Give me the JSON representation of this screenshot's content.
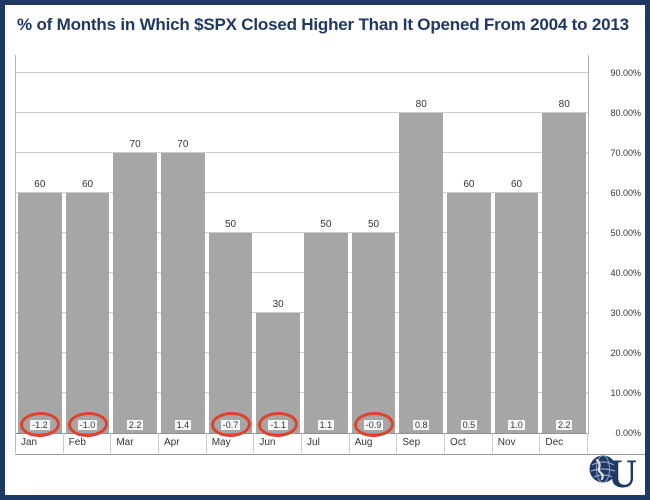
{
  "title": "% of  Months in Which $SPX Closed Higher Than It Opened From 2004 to 2013",
  "logo": {
    "letter": "U"
  },
  "chart_data": {
    "type": "bar",
    "title": "% of  Months in Which $SPX Closed Higher Than It Opened From 2004 to 2013",
    "xlabel": "",
    "ylabel": "",
    "ylim": [
      0,
      90
    ],
    "grid": true,
    "legend": "none",
    "bar_color": "#a6a6a6",
    "circle_color": "#e0402e",
    "categories": [
      "Jan",
      "Feb",
      "Mar",
      "Apr",
      "May",
      "Jun",
      "Jul",
      "Aug",
      "Sep",
      "Oct",
      "Nov",
      "Dec"
    ],
    "values": [
      60,
      60,
      70,
      70,
      50,
      30,
      50,
      50,
      80,
      60,
      60,
      80
    ],
    "bottom_values": [
      "-1.2",
      "-1.0",
      "2.2",
      "1.4",
      "-0.7",
      "-1.1",
      "1.1",
      "-0.9",
      "0.8",
      "0.5",
      "1.0",
      "2.2"
    ],
    "circled_indices": [
      0,
      1,
      4,
      5,
      7
    ],
    "y_ticks": [
      {
        "value": 0,
        "label": "0.00%"
      },
      {
        "value": 10,
        "label": "10.00%"
      },
      {
        "value": 20,
        "label": "20.00%"
      },
      {
        "value": 30,
        "label": "30.00%"
      },
      {
        "value": 40,
        "label": "40.00%"
      },
      {
        "value": 50,
        "label": "50.00%"
      },
      {
        "value": 60,
        "label": "60.00%"
      },
      {
        "value": 70,
        "label": "70.00%"
      },
      {
        "value": 80,
        "label": "80.00%"
      },
      {
        "value": 90,
        "label": "90.00%"
      }
    ]
  }
}
